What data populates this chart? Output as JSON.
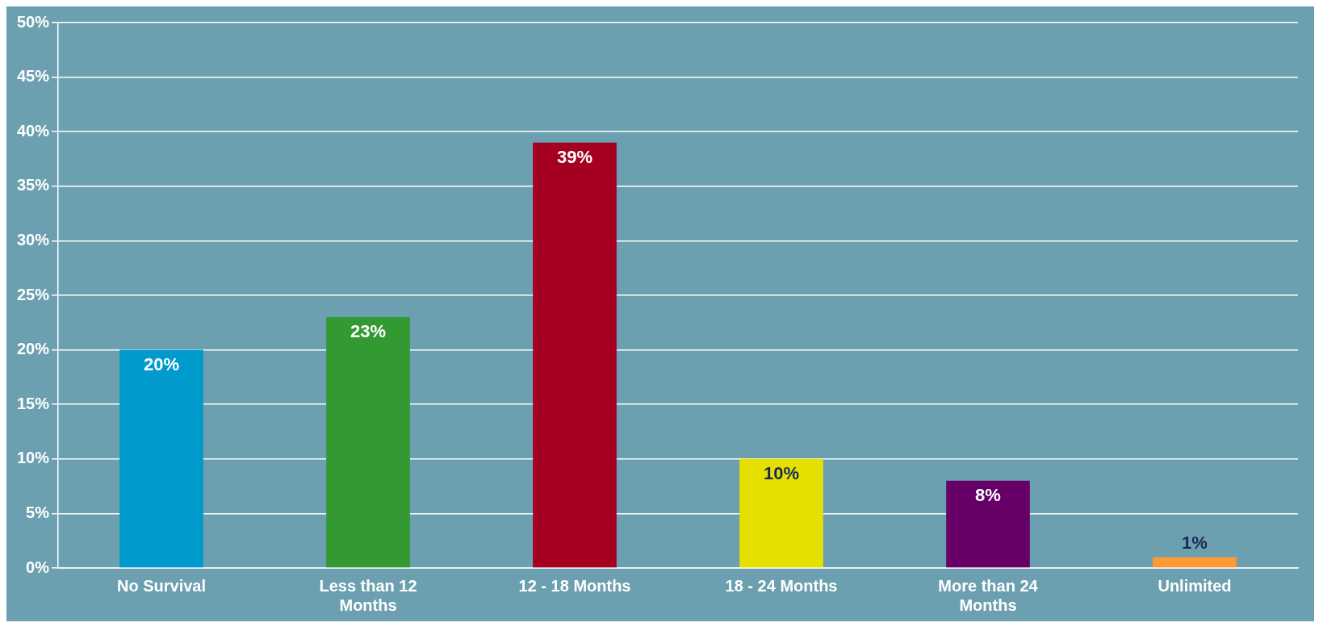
{
  "chart_data": {
    "type": "bar",
    "categories": [
      "No Survival",
      "Less than 12 Months",
      "12 - 18 Months",
      "18 - 24 Months",
      "More than 24 Months",
      "Unlimited"
    ],
    "values": [
      20,
      23,
      39,
      10,
      8,
      1
    ],
    "colors": [
      "#009acd",
      "#339933",
      "#a50021",
      "#e6e000",
      "#660066",
      "#ff9933"
    ],
    "ylim": [
      0,
      50
    ],
    "yticks": [
      {
        "value": 0,
        "label": "0%"
      },
      {
        "value": 5,
        "label": "5%"
      },
      {
        "value": 10,
        "label": "10%"
      },
      {
        "value": 15,
        "label": "15%"
      },
      {
        "value": 20,
        "label": "20%"
      },
      {
        "value": 25,
        "label": "25%"
      },
      {
        "value": 30,
        "label": "30%"
      },
      {
        "value": 35,
        "label": "35%"
      },
      {
        "value": 40,
        "label": "40%"
      },
      {
        "value": 45,
        "label": "45%"
      },
      {
        "value": 50,
        "label": "50%"
      }
    ],
    "value_labels": [
      "20%",
      "23%",
      "39%",
      "10%",
      "8%",
      "1%"
    ],
    "grid": "y",
    "legend": false
  }
}
